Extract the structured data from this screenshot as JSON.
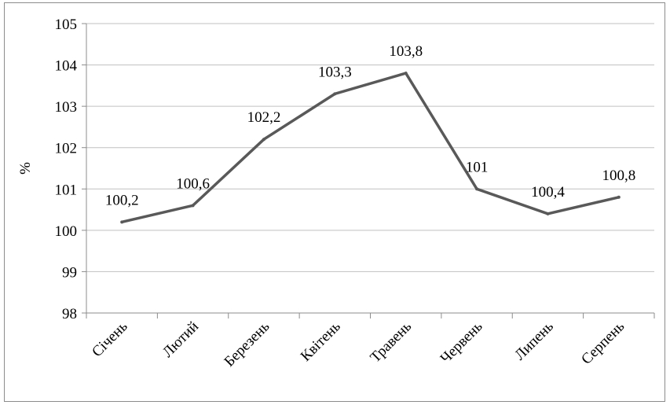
{
  "chart_data": {
    "type": "line",
    "categories": [
      "Січень",
      "Лютий",
      "Березень",
      "Квітень",
      "Травень",
      "Червень",
      "Липень",
      "Серпень"
    ],
    "series": [
      {
        "values": [
          100.2,
          100.6,
          102.2,
          103.3,
          103.8,
          101,
          100.4,
          100.8
        ]
      }
    ],
    "data_labels": [
      "100,2",
      "100,6",
      "102,2",
      "103,3",
      "103,8",
      "101",
      "100,4",
      "100,8"
    ],
    "ylabel": "%",
    "xlabel": "",
    "title": "",
    "ylim": [
      98,
      105
    ],
    "yticks": [
      "98",
      "99",
      "100",
      "101",
      "102",
      "103",
      "104",
      "105"
    ],
    "grid": true,
    "legend": "none",
    "colors": {
      "line": "#595959",
      "grid": "#c0c0c0",
      "axis": "#8c8c8c"
    }
  }
}
